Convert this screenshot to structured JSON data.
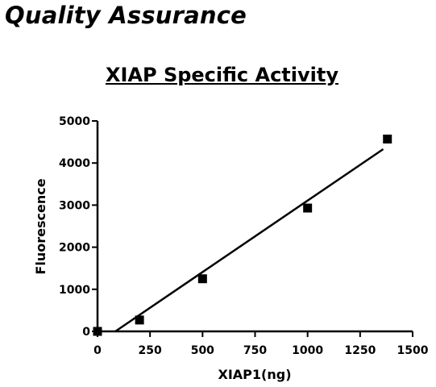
{
  "page": {
    "heading": "Quality Assurance"
  },
  "chart_data": {
    "type": "scatter",
    "title": "XIAP Specific Activity",
    "xlabel": "XIAP1(ng)",
    "ylabel": "Fluorescence",
    "xlim": [
      0,
      1500
    ],
    "ylim": [
      0,
      5000
    ],
    "x_ticks": [
      0,
      250,
      500,
      750,
      1000,
      1250,
      1500
    ],
    "y_ticks": [
      0,
      1000,
      2000,
      3000,
      4000,
      5000
    ],
    "grid": false,
    "series": [
      {
        "marker": "square",
        "points": [
          {
            "x": 0,
            "y": 0
          },
          {
            "x": 200,
            "y": 270
          },
          {
            "x": 500,
            "y": 1250
          },
          {
            "x": 1000,
            "y": 2930
          },
          {
            "x": 1380,
            "y": 4570
          }
        ]
      }
    ],
    "fit_line": {
      "type": "linear",
      "from": {
        "x": 85,
        "y": 0
      },
      "to": {
        "x": 1360,
        "y": 4330
      }
    },
    "colors": {
      "marks": "#000000",
      "background": "#ffffff"
    }
  }
}
